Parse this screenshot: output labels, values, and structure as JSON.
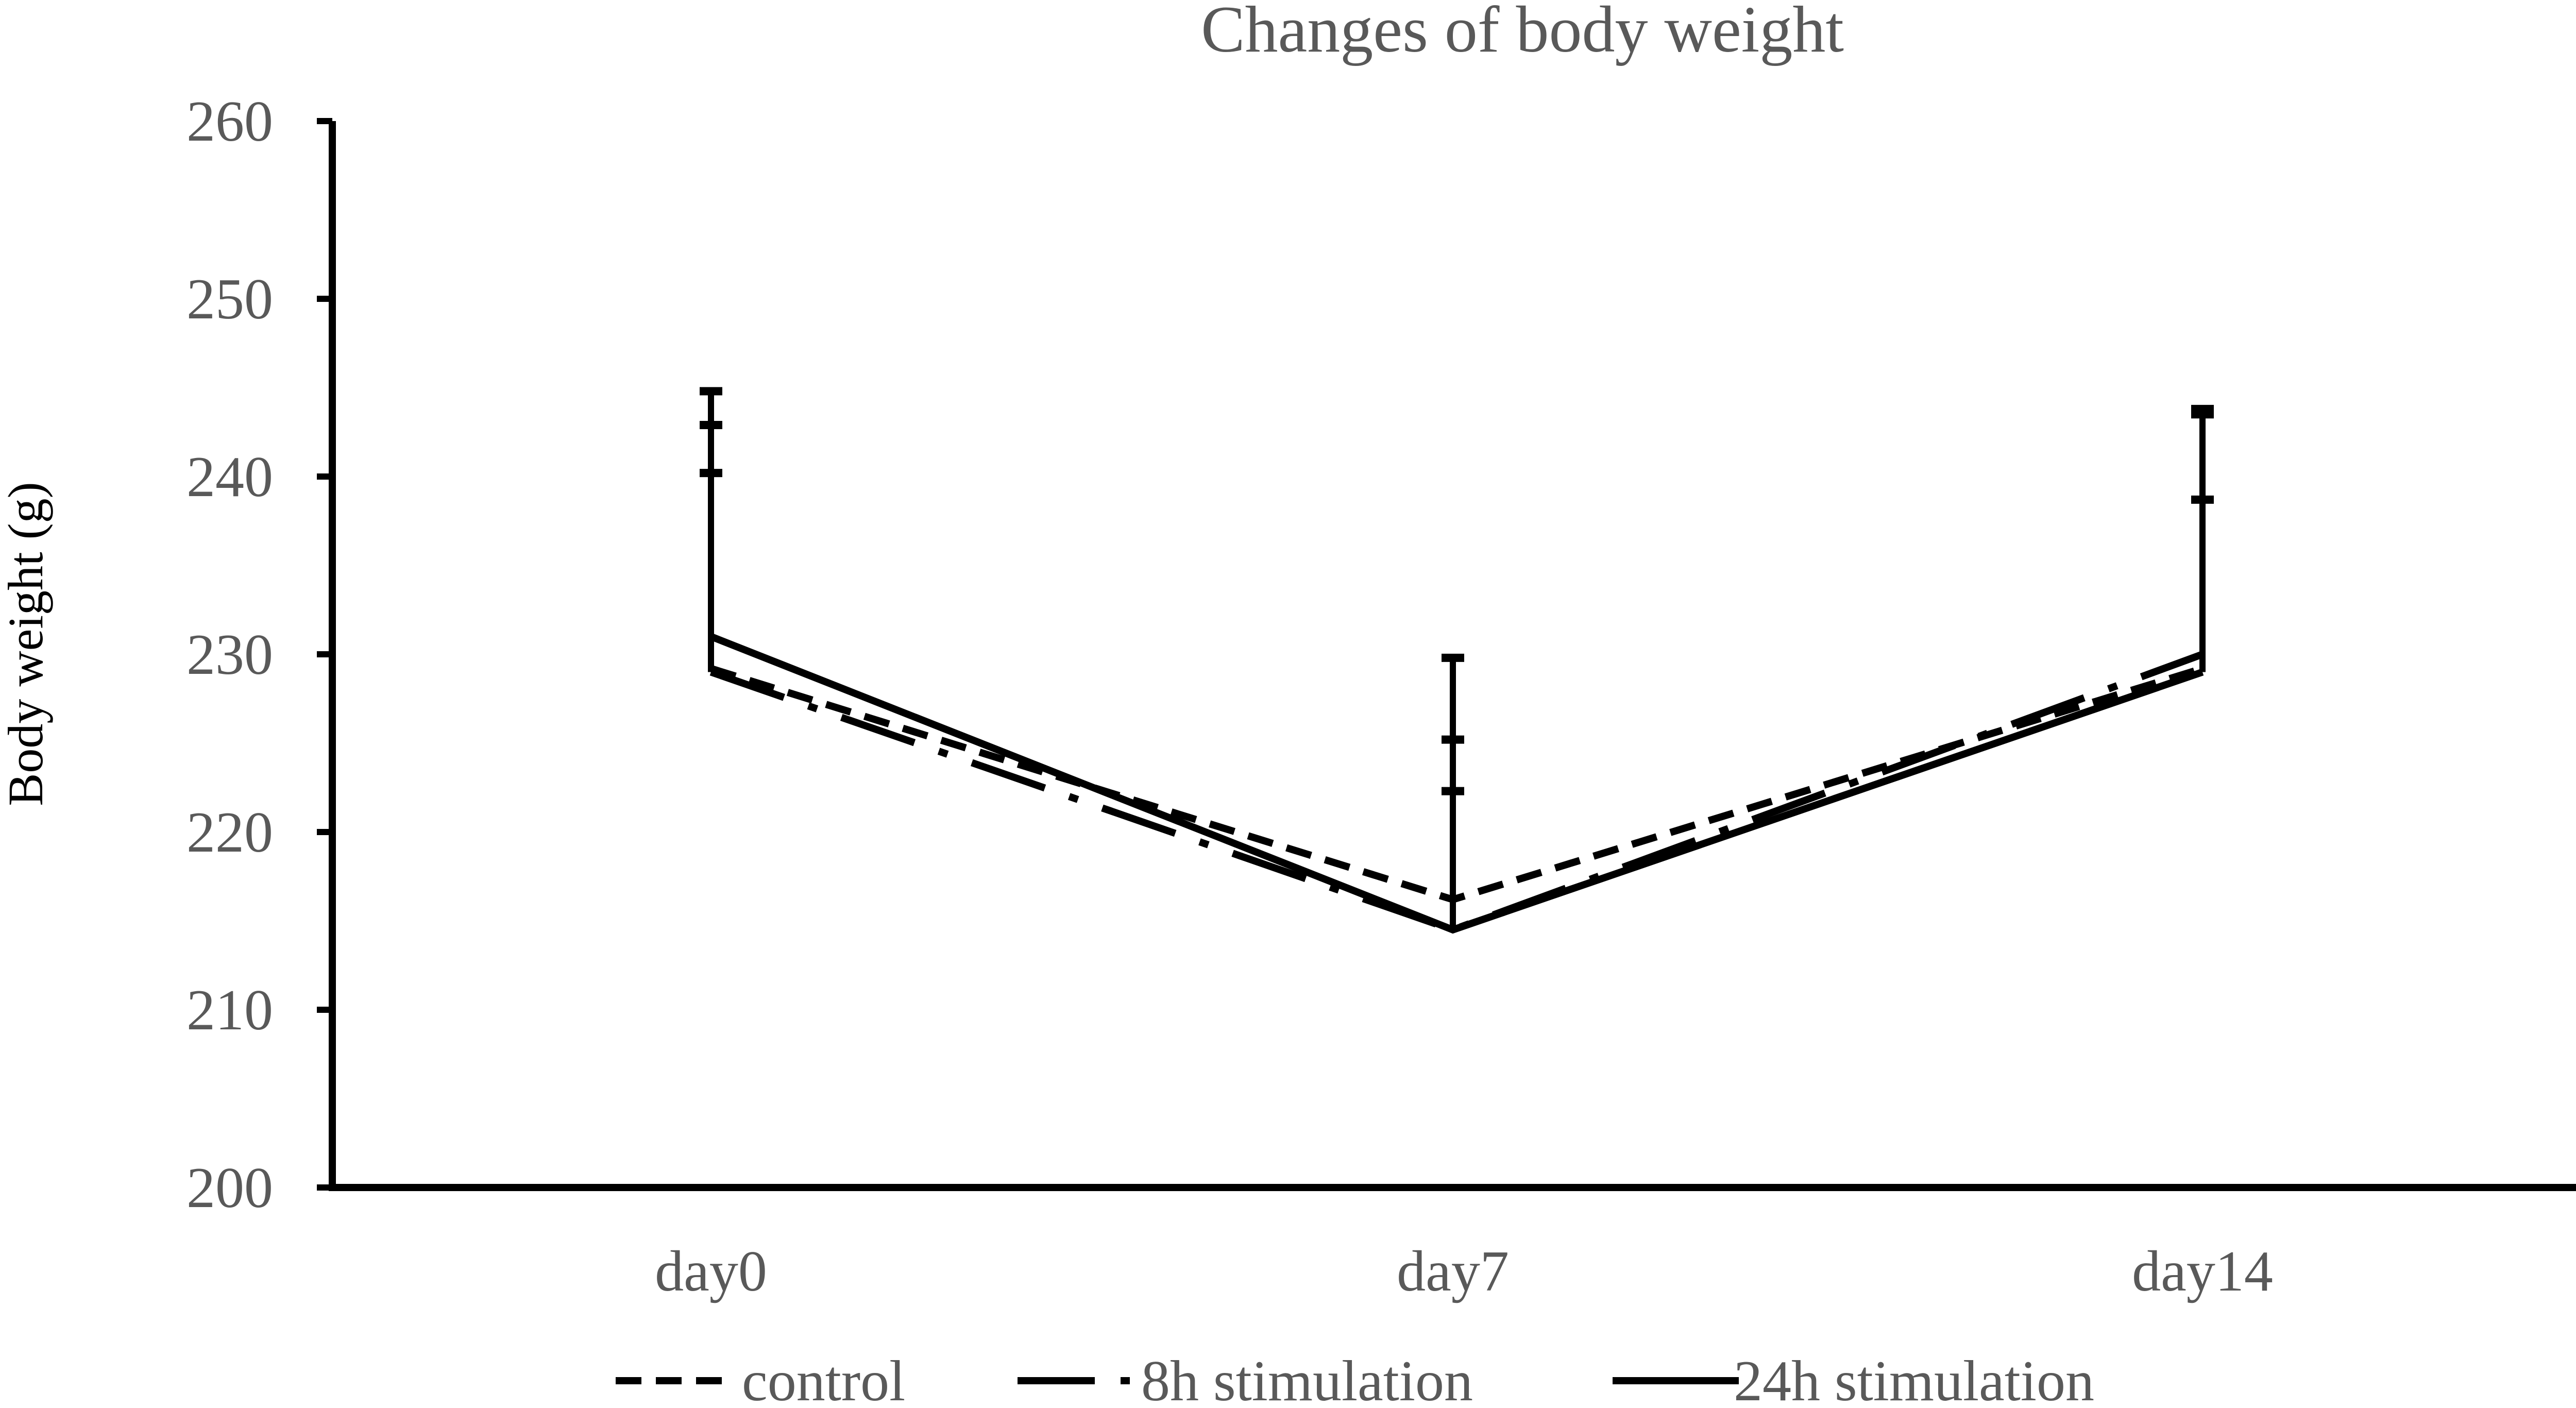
{
  "chart_data": {
    "type": "line",
    "title": "Changes of body weight",
    "xlabel": "",
    "ylabel": "Body weight (g)",
    "categories": [
      "day0",
      "day7",
      "day14"
    ],
    "ylim": [
      200,
      260
    ],
    "yticks": [
      "200",
      "210",
      "220",
      "230",
      "240",
      "250",
      "260"
    ],
    "grid": false,
    "legend_position": "bottom",
    "series": [
      {
        "name": "control",
        "style": "short-dash",
        "values": [
          229.2,
          216.2,
          229.2
        ],
        "error_upper": [
          240.2,
          222.3,
          238.7
        ]
      },
      {
        "name": "8h stimulation",
        "style": "long-dash-dot",
        "values": [
          229.0,
          214.5,
          230.0
        ],
        "error_upper": [
          242.9,
          225.2,
          243.5
        ]
      },
      {
        "name": "24h stimulation",
        "style": "solid",
        "values": [
          231.0,
          214.5,
          229.0
        ],
        "error_upper": [
          244.8,
          229.8,
          243.8
        ]
      }
    ]
  }
}
